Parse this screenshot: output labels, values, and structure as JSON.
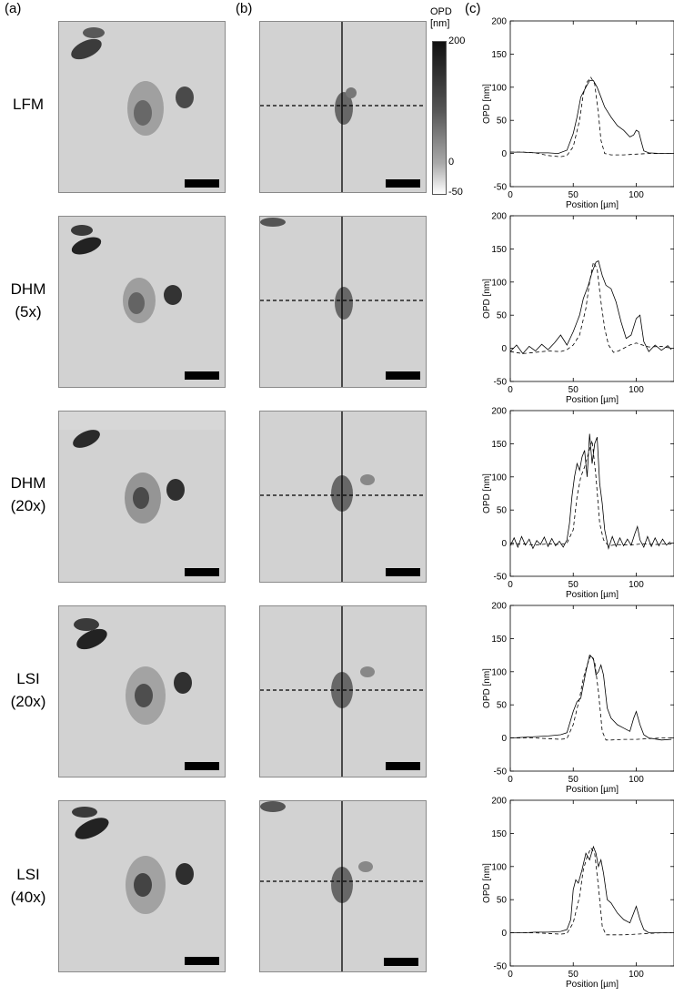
{
  "panel_labels": {
    "a": "(a)",
    "b": "(b)",
    "c": "(c)"
  },
  "rows": [
    {
      "label_lines": [
        "LFM"
      ]
    },
    {
      "label_lines": [
        "DHM",
        "(5x)"
      ]
    },
    {
      "label_lines": [
        "DHM",
        "(20x)"
      ]
    },
    {
      "label_lines": [
        "LSI",
        "(20x)"
      ]
    },
    {
      "label_lines": [
        "LSI",
        "(40x)"
      ]
    }
  ],
  "colorbar": {
    "title_line1": "OPD",
    "title_line2": "[nm]",
    "ticks": [
      {
        "value": 200,
        "label": "200"
      },
      {
        "value": 0,
        "label": "0"
      },
      {
        "value": -50,
        "label": "-50"
      }
    ],
    "range": [
      -50,
      200
    ],
    "gradient_top": "#111111",
    "gradient_bottom": "#ffffff"
  },
  "chart_data": [
    {
      "type": "line",
      "panel": "LFM",
      "xlabel": "Position [µm]",
      "ylabel": "OPD [nm]",
      "xlim": [
        0,
        130
      ],
      "ylim": [
        -50,
        200
      ],
      "xticks": [
        0,
        50,
        100
      ],
      "yticks": [
        -50,
        0,
        50,
        100,
        150,
        200
      ],
      "series": [
        {
          "style": "solid",
          "x": [
            0,
            10,
            20,
            30,
            38,
            45,
            50,
            53,
            56,
            60,
            63,
            66,
            69,
            72,
            75,
            80,
            85,
            90,
            95,
            98,
            100,
            102,
            104,
            106,
            110,
            120,
            128
          ],
          "y": [
            2,
            2,
            1,
            1,
            0,
            5,
            30,
            55,
            85,
            100,
            110,
            110,
            100,
            85,
            70,
            55,
            42,
            35,
            25,
            28,
            35,
            33,
            18,
            4,
            1,
            0,
            0
          ]
        },
        {
          "style": "dashed",
          "x": [
            0,
            10,
            20,
            30,
            40,
            45,
            50,
            55,
            58,
            61,
            64,
            67,
            70,
            72,
            75,
            80,
            90,
            100,
            110,
            120,
            128
          ],
          "y": [
            2,
            2,
            1,
            -3,
            -5,
            -3,
            10,
            50,
            90,
            108,
            115,
            105,
            60,
            20,
            0,
            -2,
            -2,
            -1,
            0,
            0,
            0
          ]
        }
      ]
    },
    {
      "type": "line",
      "panel": "DHM (5x)",
      "xlabel": "Position [µm]",
      "ylabel": "OPD [nm]",
      "xlim": [
        0,
        130
      ],
      "ylim": [
        -50,
        200
      ],
      "xticks": [
        0,
        50,
        100
      ],
      "yticks": [
        -50,
        0,
        50,
        100,
        150,
        200
      ],
      "series": [
        {
          "style": "solid",
          "x": [
            0,
            5,
            10,
            15,
            20,
            25,
            30,
            35,
            40,
            45,
            50,
            55,
            58,
            62,
            65,
            68,
            70,
            73,
            76,
            80,
            84,
            88,
            92,
            96,
            100,
            103,
            106,
            110,
            115,
            120,
            125,
            128
          ],
          "y": [
            -5,
            5,
            -8,
            3,
            -4,
            6,
            -2,
            8,
            20,
            5,
            25,
            50,
            75,
            95,
            115,
            130,
            132,
            110,
            95,
            90,
            70,
            40,
            15,
            20,
            45,
            50,
            10,
            -5,
            5,
            -3,
            4,
            -2
          ]
        },
        {
          "style": "dashed",
          "x": [
            0,
            10,
            20,
            30,
            40,
            45,
            50,
            55,
            60,
            63,
            66,
            69,
            72,
            75,
            78,
            82,
            86,
            90,
            95,
            100,
            105,
            110,
            120,
            128
          ],
          "y": [
            -5,
            -8,
            -6,
            -4,
            -5,
            -2,
            5,
            20,
            60,
            100,
            130,
            120,
            70,
            30,
            5,
            -6,
            -4,
            0,
            5,
            8,
            5,
            2,
            3,
            0
          ]
        }
      ]
    },
    {
      "type": "line",
      "panel": "DHM (20x)",
      "xlabel": "Position [µm]",
      "ylabel": "OPD [nm]",
      "xlim": [
        0,
        130
      ],
      "ylim": [
        -50,
        200
      ],
      "xticks": [
        0,
        50,
        100
      ],
      "yticks": [
        -50,
        0,
        50,
        100,
        150,
        200
      ],
      "series": [
        {
          "style": "solid",
          "x": [
            0,
            3,
            6,
            9,
            12,
            15,
            18,
            21,
            24,
            27,
            30,
            33,
            36,
            39,
            42,
            45,
            47,
            49,
            51,
            53,
            55,
            57,
            59,
            61,
            63,
            65,
            67,
            69,
            71,
            73,
            75,
            78,
            81,
            84,
            87,
            90,
            93,
            96,
            99,
            101,
            103,
            106,
            109,
            112,
            115,
            118,
            121,
            124,
            127
          ],
          "y": [
            -4,
            8,
            -6,
            10,
            -3,
            6,
            -8,
            4,
            -2,
            9,
            -5,
            7,
            -4,
            3,
            -6,
            5,
            30,
            70,
            100,
            120,
            110,
            130,
            140,
            100,
            165,
            120,
            150,
            160,
            90,
            60,
            20,
            -8,
            10,
            -5,
            8,
            -4,
            6,
            -3,
            15,
            25,
            5,
            -6,
            10,
            -5,
            8,
            -4,
            6,
            -3,
            2
          ]
        },
        {
          "style": "dashed",
          "x": [
            0,
            10,
            20,
            30,
            40,
            45,
            50,
            53,
            56,
            59,
            62,
            65,
            68,
            71,
            74,
            78,
            85,
            95,
            105,
            115,
            128
          ],
          "y": [
            -2,
            -1,
            -3,
            -1,
            -2,
            0,
            20,
            70,
            100,
            115,
            135,
            155,
            100,
            30,
            5,
            -4,
            -2,
            -3,
            -1,
            -2,
            -1
          ]
        }
      ]
    },
    {
      "type": "line",
      "panel": "LSI (20x)",
      "xlabel": "Position [µm]",
      "ylabel": "OPD [nm]",
      "xlim": [
        0,
        130
      ],
      "ylim": [
        -50,
        200
      ],
      "xticks": [
        0,
        50,
        100
      ],
      "yticks": [
        -50,
        0,
        50,
        100,
        150,
        200
      ],
      "series": [
        {
          "style": "solid",
          "x": [
            0,
            10,
            20,
            30,
            40,
            45,
            50,
            53,
            56,
            60,
            63,
            66,
            68,
            70,
            72,
            74,
            77,
            80,
            85,
            90,
            95,
            98,
            100,
            103,
            106,
            110,
            120,
            128
          ],
          "y": [
            0,
            1,
            2,
            3,
            5,
            8,
            40,
            55,
            60,
            100,
            125,
            120,
            95,
            100,
            110,
            95,
            45,
            30,
            20,
            15,
            10,
            30,
            40,
            20,
            5,
            0,
            -3,
            -2
          ]
        },
        {
          "style": "dashed",
          "x": [
            0,
            10,
            20,
            30,
            40,
            45,
            50,
            55,
            58,
            61,
            64,
            67,
            70,
            73,
            76,
            80,
            90,
            100,
            110,
            120,
            128
          ],
          "y": [
            0,
            0,
            0,
            -1,
            -2,
            -1,
            20,
            60,
            90,
            110,
            125,
            115,
            70,
            10,
            -3,
            -3,
            -2,
            -2,
            -1,
            0,
            0
          ]
        }
      ]
    },
    {
      "type": "line",
      "panel": "LSI (40x)",
      "xlabel": "Position [µm]",
      "ylabel": "OPD [nm]",
      "xlim": [
        0,
        130
      ],
      "ylim": [
        -50,
        200
      ],
      "xticks": [
        0,
        50,
        100
      ],
      "yticks": [
        -50,
        0,
        50,
        100,
        150,
        200
      ],
      "series": [
        {
          "style": "solid",
          "x": [
            0,
            10,
            20,
            30,
            40,
            45,
            48,
            50,
            52,
            54,
            57,
            60,
            63,
            66,
            68,
            70,
            72,
            74,
            77,
            80,
            85,
            90,
            95,
            98,
            100,
            103,
            106,
            110,
            120,
            128
          ],
          "y": [
            0,
            0,
            1,
            1,
            2,
            5,
            20,
            65,
            80,
            75,
            95,
            120,
            110,
            130,
            120,
            100,
            110,
            90,
            50,
            45,
            30,
            20,
            15,
            30,
            40,
            20,
            5,
            0,
            0,
            0
          ]
        },
        {
          "style": "dashed",
          "x": [
            0,
            10,
            20,
            30,
            40,
            45,
            50,
            55,
            58,
            61,
            64,
            67,
            70,
            73,
            76,
            80,
            90,
            100,
            110,
            120,
            128
          ],
          "y": [
            0,
            0,
            0,
            -1,
            -2,
            -1,
            15,
            55,
            95,
            115,
            128,
            120,
            70,
            10,
            -3,
            -3,
            -3,
            -2,
            -1,
            0,
            0
          ]
        }
      ]
    }
  ]
}
